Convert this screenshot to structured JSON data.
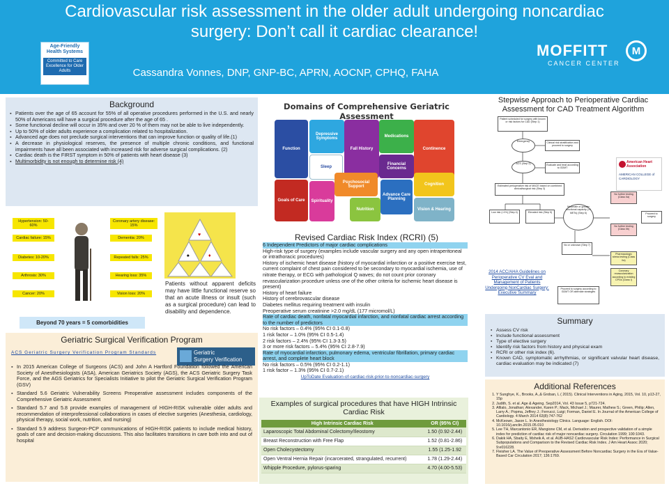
{
  "header": {
    "title": "Cardiovascular risk assessment in the older adult undergoing noncardiac surgery: Don’t call it cardiac clearance!",
    "author": "Cassandra Vonnes, DNP, GNP-BC, APRN, AOCNP, CPHQ, FAHA",
    "afhs_line1": "Age-Friendly Health Systems",
    "afhs_line2": "Committed to Care Excellence for Older Adults",
    "moffitt_name": "MOFFITT",
    "moffitt_sub": "CANCER CENTER"
  },
  "background": {
    "heading": "Background",
    "items": [
      "Patients over the age of 65 account for 55% of all operative procedures performed in the U.S. and nearly 50% of Americans will have a surgical procedure after the age of 65 .",
      "Some functional decline will occur in 35% and over 20 % of them may not be able to live independently.",
      "Up to 50% of older adults experience a complication related to hospitalization.",
      "Advanced age does not preclude surgical interventions that can improve function or quality of life.(1)",
      "A decrease in physiological reserves, the presence of multiple chronic conditions, and functional impairments have all been associated with increased risk for adverse surgical complications. (2)",
      "Cardiac death is the FIRST symptom in 50% of patients with heart disease (3)",
      "Multimorbidity is not enough to determine risk (4)"
    ]
  },
  "comorbidities": {
    "labels": [
      "Hypertension: 50-60%",
      "Coronary artery disease: 15%",
      "Cardiac failure: 15%",
      "Dementia: 20%",
      "Diabetes: 10-20%",
      "Repeated falls: 25%",
      "Arthrosis: 30%",
      "Hearing loss: 35%",
      "Cancer: 20%",
      "Vision loss: 20%"
    ],
    "footer": "Beyond 70 years = 5 comorbidities"
  },
  "patients_text": "Patients without apparent deficits may have little functional reserve so that an acute illness or insult (such as a surgical procedure) can lead to disability and dependence.",
  "gsv": {
    "heading": "Geriatric Surgical Verification Program",
    "link": "ACS Geriatric Surgery Verification Program Standards",
    "badge_line1": "Geriatric",
    "badge_line2": "Surgery Verification",
    "items": [
      "In 2015 American College of Surgeons (ACS) and John A Hartford Foundation followed the American Society of Anesthesiologists (ASA), American Geriatrics Society (AGS), the ACS Geriatric Surgery Task Force, and the AGS Geriatrics for Specialists Initiative to pilot the Geriatric Surgical Verification Program (GSV)",
      "Standard 5.6 Geriatric Vulnerability Screens Preoperative assessment includes components of the Comprehensive Geriatric Assessment",
      "Standard 5.7 and 5.8 provide examples of management of HIGH-RISK vulnerable older adults and recommendation of interprofessional collaborations in cases of elective surgeries (Anesthesia, cardiology, physical therapy, social work, nutrition, and nursing)",
      "Standard 5.9 address Surgeon-PCP communications of HIGH-RISK patients to include medical history, goals of care and decision-making discussions. This also facilitates transitions in care both into and out of hospital"
    ]
  },
  "domains": {
    "heading": "Domains of Comprehensive Geriatric Assessment",
    "pieces": [
      "Function",
      "Depressive Symptoms",
      "Fall History",
      "Medications",
      "Continence",
      "Sleep",
      "Financial Concerns",
      "Psychosocial Support",
      "Cognition",
      "Goals of Care",
      "Spirituality",
      "Nutrition",
      "Advance Care Planning",
      "Vision & Hearing"
    ]
  },
  "rcri": {
    "heading": "Revised Cardiac Risk Index (RCRI) (5)",
    "subhead": "6 Independent Predictors of major cardiac complications",
    "lines": [
      "High-risk type of surgery (examples include vascular surgery and any open intraperitoneal or intrathoracic procedures)",
      "History of ischemic heart disease (history of myocardial infarction or a positive exercise test, current complaint of chest pain considered to be secondary to myocardial ischemia, use of nitrate therapy, or ECG with pathological Q waves; do not count prior coronary revascularization procedure unless one of the other criteria for ischemic heart disease is present)",
      "History of heart failure",
      "History of cerebrovascular disease",
      "Diabetes mellitus requiring treatment with insulin",
      "Preoperative serum creatinine >2.0 mg/dL (177 micromol/L)"
    ],
    "block1_head": "Rate of cardiac death, nonfatal myocardial infarction, and nonfatal cardiac arrest according to the number of predictors",
    "block1": [
      "No risk factors – 0.4% (95% CI 0.1-0.8)",
      "1 risk factor – 1.0% (95% CI 0.5-1.4)",
      "2 risk factors – 2.4% (95% CI 1.3-3.5)",
      "3 or more risk factors – 5.4% (95% CI 2.8-7.9)"
    ],
    "block2_head": "Rate of myocardial infarction, pulmonary edema, ventricular fibrillation, primary cardiac arrest, and complete heart block",
    "block2": [
      "No risk factors – 0.5% (95% CI 0.2-1.1)",
      "1 risk factor – 1.3% (95% CI 0.7-2.1)"
    ],
    "link": "UpToDate Evaluation-of-cardiac-risk-prior-to-noncardiac-surgery"
  },
  "high_risk": {
    "heading": "Examples of surgical procedures that have HIGH Intrinsic Cardiac Risk",
    "col1": "High Intrinsic Cardiac Risk",
    "col2": "OR (95% CI)",
    "rows": [
      {
        "proc": "Laparoscopic Total Abdominal Colectomy/Ileostomy",
        "or": "1.50 (0.92-2.44)"
      },
      {
        "proc": "Breast Reconstruction with Free Flap",
        "or": "1.52 (0.81-2.86)"
      },
      {
        "proc": "Open Cholecystectomy",
        "or": "1.55 (1.25-1.92"
      },
      {
        "proc": "Open Ventral Hernia Repair (incarcerated, strangulated, recurrent)",
        "or": "1.78 (1.29-2.44)"
      },
      {
        "proc": "Whipple Procedure, pylorus-sparing",
        "or": "4.70 (4.00-5.53)"
      }
    ]
  },
  "stepwise": {
    "heading": "Stepwise Approach to Perioperative Cardiac Assessment for CAD Treatment Algorithm",
    "link": "2014 ACC/AHA Guidelines on Perioperative CV Eval and Management of Patients Undergoing NonCardiac Surgery: Executive Summary",
    "logo_line1": "American Heart Association",
    "logo_line2": "AMERICAN COLLEGE of CARDIOLOGY",
    "boxes": [
      "Patient scheduled for surgery with known or risk factors for CAD (Step 1)",
      "Emergency",
      "Clinical risk stratification and proceed to surgery",
      "ACS (Step 2)",
      "Evaluate and treat according to GDMT",
      "Estimated perioperative risk of MACE based on combined clinical/surgical risk (Step 3)",
      "Low risk (<1%) (Step 4)",
      "Elevated risk (Step 5)",
      "Moderate or greater functional capacity (>4 METs) (Step 6)",
      "No further testing (Class IIa)",
      "Proceed to surgery",
      "No or unknown (Step 7)",
      "No further testing (Class IIb)",
      "Pharmacologic stress testing (Class IIa)",
      "Coronary revascularization according to existing CPGs (Class I)",
      "Proceed to surgery according to GDMT OR alternate strategies"
    ]
  },
  "summary": {
    "heading": "Summary",
    "items": [
      "Assess CV risk",
      "Include functional assessment",
      "Type of elective surgery",
      "Identify risk factors from history and physical exam",
      "RCRI or other risk index (6).",
      "Known CAD, symptomatic arrhythmias, or significant valvular heart disease, cardiac evaluation may be indicated (7)"
    ]
  },
  "references": {
    "heading": "Additional References",
    "items": [
      "Y Sunghye, K., Brooks, A.,& Groban, L ( 2015). Clinical Interventions in Aging, 2015, Vol. 10, p13-27, 15p",
      "Judith, S. et al. Age & Ageing. Sep2014, Vol. 43 Issue 5, p721-724.",
      "Afilalo, Jonathan; Alexander, Karen P.; Mack, Michael J.; Maurer, Mathew S.; Green, Philip; Allen, Larry A.; Popma, Jeffrey J.; Ferrucci, Luigi; Forman, Daniel E. In Journal of the American College of Cardiology. 4 March 2014 63(8):747-762",
      "McKeown, Jason L. In Anesthesiology Clinics. Language: English. DOI: 10.1016/j.anclin.2015.05.010",
      "Lee TH, Marcantonio ER, Mangione CM, et al. Derivation and prospective validation of a simple index for prediction of cardiac risk of major noncardiac surgery. Circulation 1999; 100:1043.",
      "Dakik HA, Sbaity E, Msheik A, et al. AUB-HAS2 Cardiovascular Risk Index: Performance in Surgical Subpopulations and Comparison to the Revised Cardiac Risk Index. J Am Heart Assoc 2020; 9:e016228.",
      "Fleisher LA. The Value of Preoperative Assessment Before Noncardiac Surgery in the Era of Value-Based Car Circulation 2017; 136:1769."
    ]
  }
}
